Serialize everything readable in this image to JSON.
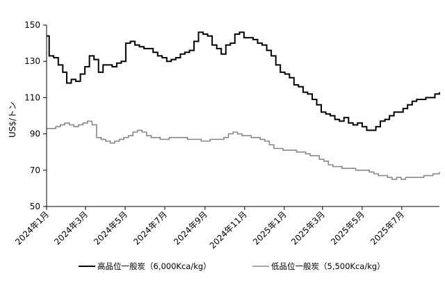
{
  "chart_data": {
    "type": "line",
    "ylabel": "US$/トン",
    "ylim": [
      50,
      150
    ],
    "yticks": [
      50,
      70,
      90,
      110,
      130,
      150
    ],
    "xlim": [
      "2024-01-01",
      "2025-08-28"
    ],
    "xticks": [
      "2024-01-01",
      "2024-03-01",
      "2024-05-01",
      "2024-07-01",
      "2024-09-01",
      "2024-11-01",
      "2025-01-01",
      "2025-03-01",
      "2025-05-01",
      "2025-07-01"
    ],
    "xtick_labels": [
      "2024年1月",
      "2024年3月",
      "2024年5月",
      "2024年7月",
      "2024年9月",
      "2024年11月",
      "2025年1月",
      "2025年3月",
      "2025年5月",
      "2025年7月"
    ],
    "grid": false,
    "legend_position": "bottom",
    "series": [
      {
        "name": "高品位一般炭（6,000Kca/kg）",
        "color": "#000000",
        "points": [
          [
            "2024-01-01",
            144
          ],
          [
            "2024-01-05",
            133
          ],
          [
            "2024-01-12",
            132
          ],
          [
            "2024-01-19",
            128
          ],
          [
            "2024-01-26",
            124
          ],
          [
            "2024-02-01",
            118
          ],
          [
            "2024-02-08",
            120
          ],
          [
            "2024-02-15",
            119
          ],
          [
            "2024-02-22",
            123
          ],
          [
            "2024-02-29",
            127
          ],
          [
            "2024-03-07",
            133
          ],
          [
            "2024-03-14",
            131
          ],
          [
            "2024-03-21",
            124
          ],
          [
            "2024-03-28",
            128
          ],
          [
            "2024-04-04",
            128
          ],
          [
            "2024-04-11",
            127
          ],
          [
            "2024-04-18",
            129
          ],
          [
            "2024-04-25",
            130
          ],
          [
            "2024-05-02",
            140
          ],
          [
            "2024-05-09",
            141
          ],
          [
            "2024-05-16",
            139
          ],
          [
            "2024-05-23",
            138
          ],
          [
            "2024-05-30",
            137
          ],
          [
            "2024-06-06",
            137
          ],
          [
            "2024-06-13",
            135
          ],
          [
            "2024-06-20",
            133
          ],
          [
            "2024-06-27",
            132
          ],
          [
            "2024-07-04",
            130
          ],
          [
            "2024-07-11",
            131
          ],
          [
            "2024-07-18",
            132
          ],
          [
            "2024-07-25",
            134
          ],
          [
            "2024-08-01",
            135
          ],
          [
            "2024-08-08",
            136
          ],
          [
            "2024-08-15",
            141
          ],
          [
            "2024-08-22",
            146
          ],
          [
            "2024-08-29",
            145
          ],
          [
            "2024-09-05",
            144
          ],
          [
            "2024-09-12",
            139
          ],
          [
            "2024-09-19",
            137
          ],
          [
            "2024-09-26",
            134
          ],
          [
            "2024-10-03",
            139
          ],
          [
            "2024-10-10",
            140
          ],
          [
            "2024-10-17",
            145
          ],
          [
            "2024-10-24",
            146
          ],
          [
            "2024-10-31",
            143
          ],
          [
            "2024-11-07",
            143
          ],
          [
            "2024-11-14",
            142
          ],
          [
            "2024-11-21",
            140
          ],
          [
            "2024-11-28",
            139
          ],
          [
            "2024-12-05",
            136
          ],
          [
            "2024-12-12",
            133
          ],
          [
            "2024-12-19",
            128
          ],
          [
            "2024-12-26",
            124
          ],
          [
            "2025-01-02",
            123
          ],
          [
            "2025-01-09",
            121
          ],
          [
            "2025-01-16",
            117
          ],
          [
            "2025-01-23",
            116
          ],
          [
            "2025-01-30",
            113
          ],
          [
            "2025-02-06",
            112
          ],
          [
            "2025-02-13",
            109
          ],
          [
            "2025-02-20",
            106
          ],
          [
            "2025-02-27",
            102
          ],
          [
            "2025-03-06",
            101
          ],
          [
            "2025-03-13",
            100
          ],
          [
            "2025-03-20",
            98
          ],
          [
            "2025-03-27",
            97
          ],
          [
            "2025-04-03",
            99
          ],
          [
            "2025-04-10",
            96
          ],
          [
            "2025-04-17",
            95
          ],
          [
            "2025-04-24",
            96
          ],
          [
            "2025-05-01",
            94
          ],
          [
            "2025-05-08",
            92
          ],
          [
            "2025-05-15",
            92
          ],
          [
            "2025-05-22",
            94
          ],
          [
            "2025-05-29",
            97
          ],
          [
            "2025-06-05",
            98
          ],
          [
            "2025-06-12",
            100
          ],
          [
            "2025-06-19",
            102
          ],
          [
            "2025-06-26",
            102
          ],
          [
            "2025-07-03",
            104
          ],
          [
            "2025-07-10",
            106
          ],
          [
            "2025-07-17",
            108
          ],
          [
            "2025-07-24",
            109
          ],
          [
            "2025-07-31",
            109
          ],
          [
            "2025-08-07",
            110
          ],
          [
            "2025-08-14",
            110
          ],
          [
            "2025-08-21",
            112
          ],
          [
            "2025-08-28",
            113
          ]
        ]
      },
      {
        "name": "低品位一般炭（5,500Kca/kg）",
        "color": "#888888",
        "points": [
          [
            "2024-01-01",
            93
          ],
          [
            "2024-01-08",
            93
          ],
          [
            "2024-01-15",
            94
          ],
          [
            "2024-01-22",
            95
          ],
          [
            "2024-01-29",
            96
          ],
          [
            "2024-02-05",
            95
          ],
          [
            "2024-02-12",
            94
          ],
          [
            "2024-02-19",
            95
          ],
          [
            "2024-02-26",
            96
          ],
          [
            "2024-03-04",
            97
          ],
          [
            "2024-03-11",
            95
          ],
          [
            "2024-03-18",
            88
          ],
          [
            "2024-03-25",
            87
          ],
          [
            "2024-04-01",
            86
          ],
          [
            "2024-04-08",
            85
          ],
          [
            "2024-04-15",
            86
          ],
          [
            "2024-04-22",
            87
          ],
          [
            "2024-04-29",
            88
          ],
          [
            "2024-05-06",
            89
          ],
          [
            "2024-05-13",
            91
          ],
          [
            "2024-05-20",
            92
          ],
          [
            "2024-05-27",
            91
          ],
          [
            "2024-06-03",
            89
          ],
          [
            "2024-06-10",
            88
          ],
          [
            "2024-06-17",
            88
          ],
          [
            "2024-06-24",
            87
          ],
          [
            "2024-07-01",
            87
          ],
          [
            "2024-07-08",
            88
          ],
          [
            "2024-07-15",
            88
          ],
          [
            "2024-07-22",
            88
          ],
          [
            "2024-07-29",
            88
          ],
          [
            "2024-08-05",
            87
          ],
          [
            "2024-08-12",
            87
          ],
          [
            "2024-08-19",
            87
          ],
          [
            "2024-08-26",
            86
          ],
          [
            "2024-09-02",
            86
          ],
          [
            "2024-09-09",
            87
          ],
          [
            "2024-09-16",
            87
          ],
          [
            "2024-09-23",
            87
          ],
          [
            "2024-09-30",
            88
          ],
          [
            "2024-10-07",
            90
          ],
          [
            "2024-10-14",
            91
          ],
          [
            "2024-10-21",
            90
          ],
          [
            "2024-10-28",
            89
          ],
          [
            "2024-11-04",
            89
          ],
          [
            "2024-11-11",
            88
          ],
          [
            "2024-11-18",
            88
          ],
          [
            "2024-11-25",
            87
          ],
          [
            "2024-12-02",
            86
          ],
          [
            "2024-12-09",
            84
          ],
          [
            "2024-12-16",
            82
          ],
          [
            "2024-12-23",
            82
          ],
          [
            "2024-12-30",
            81
          ],
          [
            "2025-01-06",
            81
          ],
          [
            "2025-01-13",
            81
          ],
          [
            "2025-01-20",
            80
          ],
          [
            "2025-01-27",
            80
          ],
          [
            "2025-02-03",
            79
          ],
          [
            "2025-02-10",
            78
          ],
          [
            "2025-02-17",
            78
          ],
          [
            "2025-02-24",
            76
          ],
          [
            "2025-03-03",
            75
          ],
          [
            "2025-03-10",
            73
          ],
          [
            "2025-03-17",
            72
          ],
          [
            "2025-03-24",
            72
          ],
          [
            "2025-03-31",
            71
          ],
          [
            "2025-04-07",
            71
          ],
          [
            "2025-04-14",
            71
          ],
          [
            "2025-04-21",
            70
          ],
          [
            "2025-04-28",
            70
          ],
          [
            "2025-05-05",
            70
          ],
          [
            "2025-05-12",
            69
          ],
          [
            "2025-05-19",
            68
          ],
          [
            "2025-05-26",
            67
          ],
          [
            "2025-06-02",
            67
          ],
          [
            "2025-06-09",
            66
          ],
          [
            "2025-06-16",
            65
          ],
          [
            "2025-06-23",
            66
          ],
          [
            "2025-06-30",
            65
          ],
          [
            "2025-07-07",
            66
          ],
          [
            "2025-07-14",
            66
          ],
          [
            "2025-07-21",
            66
          ],
          [
            "2025-07-28",
            66
          ],
          [
            "2025-08-04",
            67
          ],
          [
            "2025-08-11",
            67
          ],
          [
            "2025-08-18",
            68
          ],
          [
            "2025-08-28",
            69
          ]
        ]
      }
    ]
  }
}
